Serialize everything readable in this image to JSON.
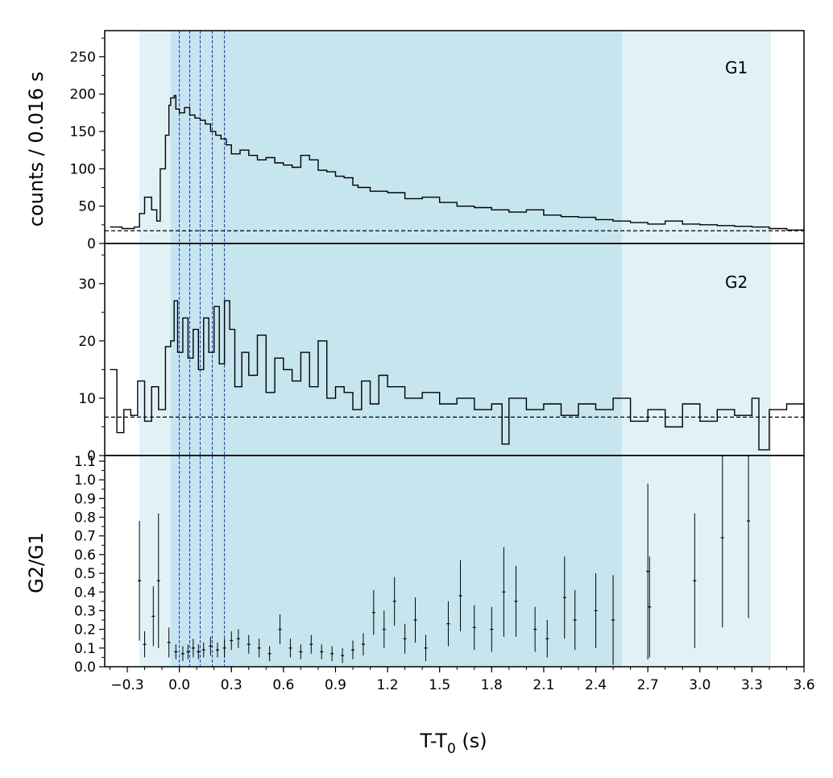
{
  "chart_data": [
    {
      "type": "line",
      "panel_label": "G1",
      "ylabel": "counts /  0.016 s",
      "ylim": [
        0,
        285
      ],
      "yticks": [
        0,
        50,
        100,
        150,
        200,
        250
      ],
      "ytick_labels": [
        "0",
        "50",
        "100",
        "150",
        "200",
        "250"
      ],
      "background_level": 17,
      "series": [
        {
          "x": [
            -0.4,
            -0.33,
            -0.26,
            -0.23,
            -0.2,
            -0.16,
            -0.13,
            -0.11,
            -0.08,
            -0.06,
            -0.05,
            -0.03,
            -0.02,
            0.0,
            0.03,
            0.06,
            0.09,
            0.12,
            0.15,
            0.18,
            0.21,
            0.24,
            0.27,
            0.3,
            0.35,
            0.4,
            0.45,
            0.5,
            0.55,
            0.6,
            0.65,
            0.7,
            0.75,
            0.8,
            0.85,
            0.9,
            0.95,
            1.0,
            1.03,
            1.1,
            1.2,
            1.3,
            1.4,
            1.5,
            1.6,
            1.7,
            1.8,
            1.9,
            2.0,
            2.1,
            2.2,
            2.3,
            2.4,
            2.5,
            2.6,
            2.7,
            2.8,
            2.9,
            3.0,
            3.1,
            3.2,
            3.3,
            3.4,
            3.5,
            3.6
          ],
          "values": [
            22,
            20,
            22,
            40,
            62,
            45,
            30,
            100,
            145,
            185,
            195,
            198,
            180,
            175,
            182,
            172,
            168,
            165,
            160,
            150,
            145,
            140,
            132,
            120,
            125,
            118,
            112,
            115,
            108,
            105,
            102,
            118,
            112,
            98,
            96,
            90,
            88,
            78,
            75,
            70,
            68,
            60,
            62,
            55,
            50,
            48,
            45,
            42,
            45,
            38,
            36,
            35,
            32,
            30,
            28,
            26,
            30,
            26,
            25,
            24,
            23,
            22,
            20,
            18,
            16
          ]
        }
      ]
    },
    {
      "type": "line",
      "panel_label": "G2",
      "ylim": [
        0,
        37
      ],
      "yticks": [
        0,
        10,
        20,
        30
      ],
      "ytick_labels": [
        "0",
        "10",
        "20",
        "30"
      ],
      "background_level": 6.7,
      "series": [
        {
          "x": [
            -0.4,
            -0.36,
            -0.32,
            -0.28,
            -0.24,
            -0.2,
            -0.16,
            -0.12,
            -0.08,
            -0.05,
            -0.03,
            -0.01,
            0.02,
            0.05,
            0.08,
            0.11,
            0.14,
            0.17,
            0.2,
            0.23,
            0.26,
            0.29,
            0.32,
            0.36,
            0.4,
            0.45,
            0.5,
            0.55,
            0.6,
            0.65,
            0.7,
            0.75,
            0.8,
            0.85,
            0.9,
            0.95,
            1.0,
            1.05,
            1.1,
            1.15,
            1.2,
            1.3,
            1.4,
            1.5,
            1.6,
            1.7,
            1.8,
            1.86,
            1.9,
            2.0,
            2.1,
            2.2,
            2.3,
            2.4,
            2.5,
            2.6,
            2.7,
            2.8,
            2.9,
            3.0,
            3.1,
            3.2,
            3.3,
            3.34,
            3.4,
            3.5,
            3.6
          ],
          "values": [
            15,
            4,
            8,
            7,
            13,
            6,
            12,
            8,
            19,
            20,
            27,
            18,
            24,
            17,
            22,
            15,
            24,
            18,
            26,
            16,
            27,
            22,
            12,
            18,
            14,
            21,
            11,
            17,
            15,
            13,
            18,
            12,
            20,
            10,
            12,
            11,
            8,
            13,
            9,
            14,
            12,
            10,
            11,
            9,
            10,
            8,
            9,
            2,
            10,
            8,
            9,
            7,
            9,
            8,
            10,
            6,
            8,
            5,
            9,
            6,
            8,
            7,
            10,
            1,
            8,
            9,
            6
          ]
        }
      ]
    },
    {
      "type": "scatter",
      "ylabel": "G2/G1",
      "xlabel_main": "T-T",
      "xlabel_sub": "0",
      "xlabel_unit": " (s)",
      "ylim": [
        0,
        1.13
      ],
      "yticks": [
        0.0,
        0.1,
        0.2,
        0.3,
        0.4,
        0.5,
        0.6,
        0.7,
        0.8,
        0.9,
        1.0,
        1.1
      ],
      "ytick_labels": [
        "0.0",
        "0.1",
        "0.2",
        "0.3",
        "0.4",
        "0.5",
        "0.6",
        "0.7",
        "0.8",
        "0.9",
        "1.0",
        "1.1"
      ],
      "xlim": [
        -0.43,
        3.6
      ],
      "xticks": [
        -0.3,
        0.0,
        0.3,
        0.6,
        0.9,
        1.2,
        1.5,
        1.8,
        2.1,
        2.4,
        2.7,
        3.0,
        3.3,
        3.6
      ],
      "xtick_labels": [
        "−0.3",
        "0.0",
        "0.3",
        "0.6",
        "0.9",
        "1.2",
        "1.5",
        "1.8",
        "2.1",
        "2.4",
        "2.7",
        "3.0",
        "3.3",
        "3.6"
      ],
      "series": [
        {
          "x": [
            -0.23,
            -0.2,
            -0.15,
            -0.12,
            -0.06,
            -0.02,
            0.02,
            0.05,
            0.08,
            0.11,
            0.14,
            0.18,
            0.22,
            0.26,
            0.3,
            0.34,
            0.4,
            0.46,
            0.52,
            0.58,
            0.64,
            0.7,
            0.76,
            0.82,
            0.88,
            0.94,
            1.0,
            1.06,
            1.12,
            1.18,
            1.24,
            1.3,
            1.36,
            1.42,
            1.55,
            1.62,
            1.7,
            1.8,
            1.87,
            1.94,
            2.05,
            2.12,
            2.22,
            2.28,
            2.4,
            2.5,
            2.7,
            2.71,
            2.97,
            3.13,
            3.28
          ],
          "y": [
            0.46,
            0.12,
            0.27,
            0.46,
            0.13,
            0.08,
            0.07,
            0.08,
            0.1,
            0.08,
            0.09,
            0.11,
            0.09,
            0.1,
            0.14,
            0.15,
            0.12,
            0.1,
            0.07,
            0.2,
            0.1,
            0.08,
            0.12,
            0.08,
            0.07,
            0.06,
            0.09,
            0.12,
            0.29,
            0.2,
            0.35,
            0.15,
            0.25,
            0.1,
            0.23,
            0.38,
            0.21,
            0.2,
            0.4,
            0.35,
            0.2,
            0.15,
            0.37,
            0.25,
            0.3,
            0.25,
            0.51,
            0.32,
            0.46,
            0.69,
            0.78
          ],
          "err": [
            0.32,
            0.07,
            0.16,
            0.36,
            0.08,
            0.04,
            0.04,
            0.04,
            0.05,
            0.04,
            0.04,
            0.05,
            0.04,
            0.05,
            0.05,
            0.05,
            0.05,
            0.05,
            0.04,
            0.08,
            0.05,
            0.04,
            0.05,
            0.04,
            0.04,
            0.04,
            0.05,
            0.06,
            0.12,
            0.1,
            0.13,
            0.08,
            0.12,
            0.07,
            0.12,
            0.19,
            0.12,
            0.12,
            0.24,
            0.19,
            0.12,
            0.1,
            0.22,
            0.16,
            0.2,
            0.24,
            0.47,
            0.27,
            0.36,
            0.48,
            0.52
          ]
        }
      ]
    }
  ],
  "shading": {
    "outer_range": [
      -0.23,
      3.41
    ],
    "inner_range": [
      -0.05,
      2.55
    ],
    "outer_color": "#e2f1f6",
    "inner_color": "#c7e5ee"
  },
  "vertical_lines": {
    "x": [
      0.0,
      0.06,
      0.12,
      0.19,
      0.26
    ],
    "color": "#1f2fd6"
  }
}
